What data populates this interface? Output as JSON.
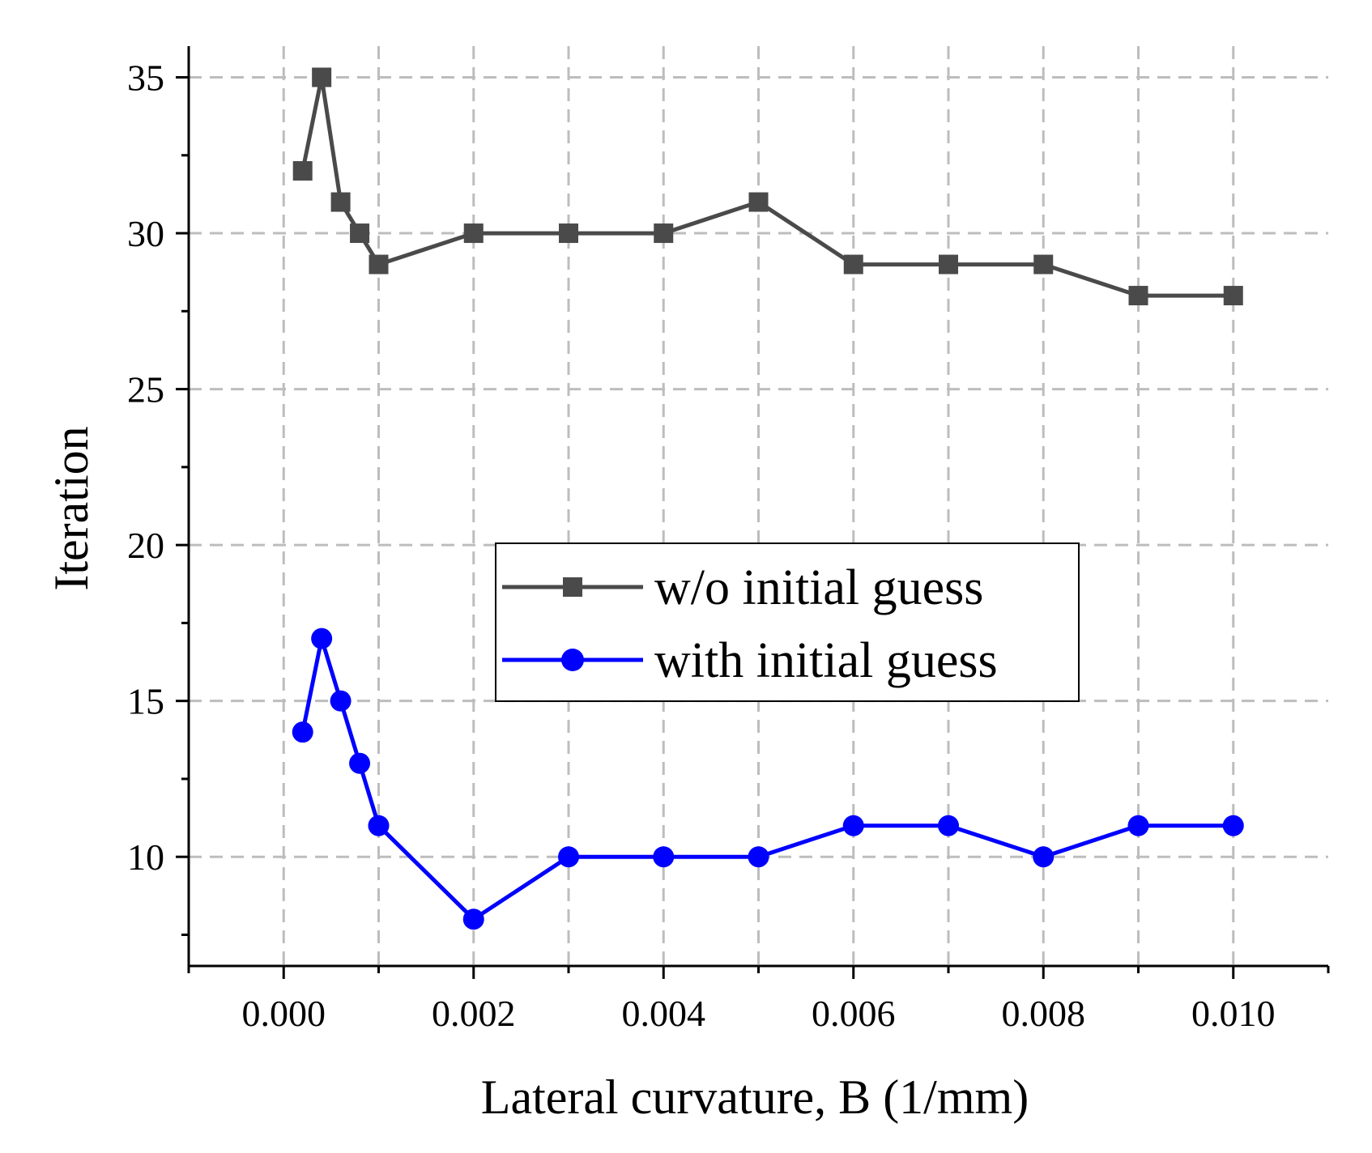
{
  "chart_data": {
    "type": "line",
    "xlabel": "Lateral curvature, B (1/mm)",
    "ylabel": "Iteration",
    "xlim": [
      -0.001,
      0.011
    ],
    "ylim": [
      6.5,
      36
    ],
    "x_ticks": [
      0.0,
      0.002,
      0.004,
      0.006,
      0.008,
      0.01
    ],
    "x_tick_labels": [
      "0.000",
      "0.002",
      "0.004",
      "0.006",
      "0.008",
      "0.010"
    ],
    "x_minor_ticks": [
      -0.001,
      0.001,
      0.003,
      0.005,
      0.007,
      0.009,
      0.011
    ],
    "y_ticks": [
      10,
      15,
      20,
      25,
      30,
      35
    ],
    "y_tick_labels": [
      "10",
      "15",
      "20",
      "25",
      "30",
      "35"
    ],
    "y_minor_ticks": [
      7.5,
      12.5,
      17.5,
      22.5,
      27.5,
      32.5
    ],
    "grid": true,
    "legend_position": "center",
    "series": [
      {
        "name": "w/o initial guess",
        "color": "#4a4a4a",
        "marker": "square",
        "x": [
          0.0002,
          0.0004,
          0.0006,
          0.0008,
          0.001,
          0.002,
          0.003,
          0.004,
          0.005,
          0.006,
          0.007,
          0.008,
          0.009,
          0.01
        ],
        "values": [
          32,
          35,
          31,
          30,
          29,
          30,
          30,
          30,
          31,
          29,
          29,
          29,
          28,
          28
        ]
      },
      {
        "name": "with initial guess",
        "color": "#0000ff",
        "marker": "circle",
        "x": [
          0.0002,
          0.0004,
          0.0006,
          0.0008,
          0.001,
          0.002,
          0.003,
          0.004,
          0.005,
          0.006,
          0.007,
          0.008,
          0.009,
          0.01
        ],
        "values": [
          14,
          17,
          15,
          13,
          11,
          8,
          10,
          10,
          10,
          11,
          11,
          10,
          11,
          11
        ]
      }
    ]
  }
}
